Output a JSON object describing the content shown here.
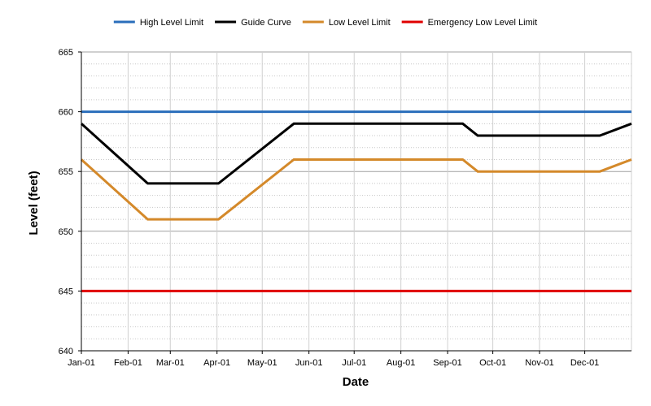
{
  "chart_data": {
    "type": "line",
    "title": "",
    "xlabel": "Date",
    "ylabel": "Level (feet)",
    "ylim": [
      640,
      665
    ],
    "y_major_ticks": [
      640,
      645,
      650,
      655,
      660,
      665
    ],
    "y_minor_step": 1,
    "x_domain_days": [
      0,
      365
    ],
    "x_ticks": [
      {
        "label": "Jan-01",
        "day": 0
      },
      {
        "label": "Feb-01",
        "day": 31
      },
      {
        "label": "Mar-01",
        "day": 59
      },
      {
        "label": "Apr-01",
        "day": 90
      },
      {
        "label": "May-01",
        "day": 120
      },
      {
        "label": "Jun-01",
        "day": 151
      },
      {
        "label": "Jul-01",
        "day": 181
      },
      {
        "label": "Aug-01",
        "day": 212
      },
      {
        "label": "Sep-01",
        "day": 243
      },
      {
        "label": "Oct-01",
        "day": 273
      },
      {
        "label": "Nov-01",
        "day": 304
      },
      {
        "label": "Dec-01",
        "day": 334
      }
    ],
    "legend_position": "top",
    "series": [
      {
        "name": "High Level Limit",
        "color": "#2a6ebb",
        "points": [
          [
            0,
            660
          ],
          [
            365,
            660
          ]
        ]
      },
      {
        "name": "Guide Curve",
        "color": "#000000",
        "points": [
          [
            0,
            659
          ],
          [
            44,
            654
          ],
          [
            91,
            654
          ],
          [
            141,
            659
          ],
          [
            253,
            659
          ],
          [
            263,
            658
          ],
          [
            344,
            658
          ],
          [
            365,
            659
          ]
        ]
      },
      {
        "name": "Low Level Limit",
        "color": "#d4892a",
        "points": [
          [
            0,
            656
          ],
          [
            44,
            651
          ],
          [
            91,
            651
          ],
          [
            141,
            656
          ],
          [
            253,
            656
          ],
          [
            263,
            655
          ],
          [
            344,
            655
          ],
          [
            365,
            656
          ]
        ]
      },
      {
        "name": "Emergency Low Level Limit",
        "color": "#e00000",
        "points": [
          [
            0,
            645
          ],
          [
            365,
            645
          ]
        ]
      }
    ]
  }
}
